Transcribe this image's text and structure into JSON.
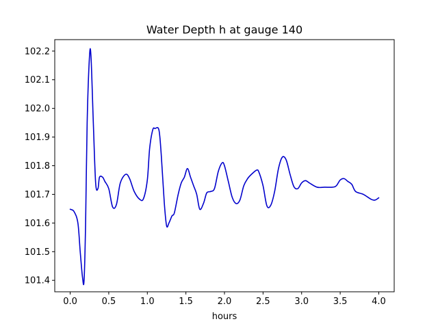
{
  "chart_data": {
    "type": "line",
    "title": "Water Depth h at gauge 140",
    "xlabel": "hours",
    "ylabel": "",
    "xlim": [
      -0.2,
      4.2
    ],
    "ylim": [
      101.36,
      102.24
    ],
    "xticks": [
      0.0,
      0.5,
      1.0,
      1.5,
      2.0,
      2.5,
      3.0,
      3.5,
      4.0
    ],
    "xtick_labels": [
      "0.0",
      "0.5",
      "1.0",
      "1.5",
      "2.0",
      "2.5",
      "3.0",
      "3.5",
      "4.0"
    ],
    "yticks": [
      101.4,
      101.5,
      101.6,
      101.7,
      101.8,
      101.9,
      102.0,
      102.1,
      102.2
    ],
    "ytick_labels": [
      "101.4",
      "101.5",
      "101.6",
      "101.7",
      "101.8",
      "101.9",
      "102.0",
      "102.1",
      "102.2"
    ],
    "grid": false,
    "legend": "none",
    "series": [
      {
        "color": "#0000cc",
        "x": [
          0.0,
          0.05,
          0.1,
          0.13,
          0.16,
          0.18,
          0.2,
          0.22,
          0.25,
          0.27,
          0.3,
          0.33,
          0.36,
          0.38,
          0.42,
          0.45,
          0.5,
          0.55,
          0.6,
          0.65,
          0.72,
          0.77,
          0.83,
          0.9,
          0.95,
          1.0,
          1.03,
          1.07,
          1.1,
          1.15,
          1.18,
          1.22,
          1.25,
          1.28,
          1.32,
          1.35,
          1.4,
          1.44,
          1.48,
          1.52,
          1.56,
          1.6,
          1.64,
          1.68,
          1.73,
          1.77,
          1.82,
          1.87,
          1.92,
          1.97,
          2.0,
          2.05,
          2.1,
          2.15,
          2.2,
          2.25,
          2.3,
          2.35,
          2.42,
          2.45,
          2.5,
          2.55,
          2.6,
          2.65,
          2.7,
          2.75,
          2.8,
          2.85,
          2.9,
          2.95,
          3.0,
          3.05,
          3.1,
          3.2,
          3.3,
          3.4,
          3.45,
          3.5,
          3.55,
          3.6,
          3.65,
          3.7,
          3.8,
          3.9,
          3.95,
          4.0
        ],
        "y": [
          101.648,
          101.64,
          101.6,
          101.5,
          101.41,
          101.4,
          101.6,
          101.95,
          102.18,
          102.18,
          101.95,
          101.74,
          101.72,
          101.76,
          101.76,
          101.745,
          101.72,
          101.656,
          101.665,
          101.74,
          101.77,
          101.755,
          101.71,
          101.683,
          101.685,
          101.75,
          101.86,
          101.925,
          101.93,
          101.925,
          101.84,
          101.67,
          101.59,
          101.6,
          101.625,
          101.635,
          101.7,
          101.74,
          101.76,
          101.79,
          101.76,
          101.73,
          101.7,
          101.648,
          101.67,
          101.705,
          101.71,
          101.72,
          101.78,
          101.81,
          101.8,
          101.745,
          101.69,
          101.668,
          101.68,
          101.73,
          101.755,
          101.77,
          101.785,
          101.775,
          101.73,
          101.66,
          101.662,
          101.71,
          101.79,
          101.83,
          101.82,
          101.77,
          101.727,
          101.72,
          101.74,
          101.748,
          101.74,
          101.725,
          101.725,
          101.725,
          101.73,
          101.75,
          101.755,
          101.745,
          101.735,
          101.71,
          101.7,
          101.683,
          101.68,
          101.688
        ]
      }
    ]
  }
}
